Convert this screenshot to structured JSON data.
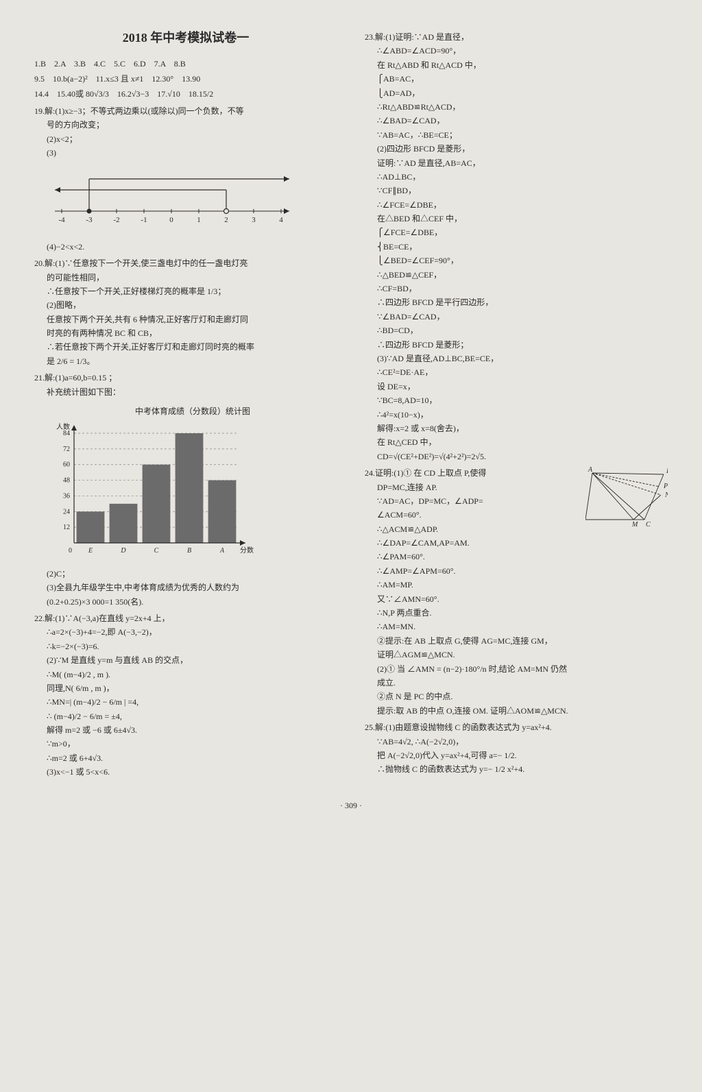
{
  "title": "2018 年中考模拟试卷一",
  "page_number": "· 309 ·",
  "mc_answers": {
    "row1": "1.B　2.A　3.B　4.C　5.C　6.D　7.A　8.B",
    "row2_a": "9.5　10.b(a−2)²　11.x≤3 且 x≠1　12.30°　13.90",
    "row2_b": "14.4　15.40或 80√3/3　16.2√3−3　17.√10　18.15/2"
  },
  "q19": {
    "head": "19.解:(1)x≥−3；不等式两边乘以(或除以)同一个负数，不等",
    "head2": "号的方向改变；",
    "p2": "(2)x<2；",
    "p3": "(3)",
    "numline": {
      "min": -4,
      "max": 4,
      "ticks": [
        -4,
        -3,
        -2,
        -1,
        0,
        1,
        2,
        3,
        4
      ],
      "open_at": 2,
      "closed_at": -3,
      "shade_from": -2,
      "shade_to": 2,
      "bracket1_from": -3,
      "bracket1_to": 4,
      "bracket2_from": -4,
      "bracket2_to": 2,
      "axis_color": "#2a2a2a",
      "tick_fontsize": 11
    },
    "p4": "(4)−2<x<2."
  },
  "q20": {
    "head": "20.解:(1)∵任意按下一个开关,使三盏电灯中的任一盏电灯亮",
    "l1": "的可能性相同，",
    "l2": "∴任意按下一个开关,正好楼梯灯亮的概率是 1/3；",
    "l3": "(2)图略，",
    "l4": "任意按下两个开关,共有 6 种情况,正好客厅灯和走廊灯同",
    "l5": "时亮的有两种情况 BC 和 CB，",
    "l6": "∴若任意按下两个开关,正好客厅灯和走廊灯同时亮的概率",
    "l7": "是 2/6 = 1/3。"
  },
  "q21": {
    "head": "21.解:(1)a=60,b=0.15 ；",
    "l1": "补充统计图如下图：",
    "chart": {
      "title": "中考体育成绩（分数段）统计图",
      "ylabel": "人数",
      "xlabel": "分数段",
      "categories": [
        "E",
        "D",
        "C",
        "B",
        "A"
      ],
      "values": [
        24,
        30,
        60,
        84,
        48
      ],
      "ylim": [
        0,
        84
      ],
      "ytick_step": 12,
      "yticks": [
        12,
        24,
        36,
        48,
        60,
        72,
        84
      ],
      "bar_color": "#6b6b6b",
      "grid_color": "#888888",
      "bar_width": 0.85,
      "background": "#e8e6e0",
      "axis_color": "#2a2a2a",
      "fontsize": 10
    },
    "l2": "(2)C；",
    "l3": "(3)全县九年级学生中,中考体育成绩为优秀的人数约为",
    "l4": "(0.2+0.25)×3 000=1 350(名)."
  },
  "q22": {
    "head": "22.解:(1)∵A(−3,a)在直线 y=2x+4 上，",
    "l1": "∴a=2×(−3)+4=−2,即 A(−3,−2)，",
    "l2": "∴k=−2×(−3)=6.",
    "l3": "(2)∵M 是直线 y=m 与直线 AB 的交点，",
    "l4": "∴M( (m−4)/2 , m ).",
    "l5": "同理,N( 6/m , m )，",
    "l6": "∴MN=| (m−4)/2 − 6/m | =4,",
    "l7": "∴ (m−4)/2 − 6/m = ±4,",
    "l8": "解得 m=2 或 −6 或 6±4√3.",
    "l9": "∵m>0，",
    "l10": "∴m=2 或 6+4√3.",
    "l11": "(3)x<−1 或 5<x<6."
  },
  "q23": {
    "head": "23.解:(1)证明:∵AD 是直径，",
    "lines": [
      "∴∠ABD=∠ACD=90°，",
      "在 Rt△ABD 和 Rt△ACD 中，",
      "⎧AB=AC，",
      "⎩AD=AD，",
      "∴Rt△ABD≌Rt△ACD，",
      "∴∠BAD=∠CAD，",
      "∵AB=AC，∴BE=CE；",
      "(2)四边形 BFCD 是菱形，",
      "证明:∵AD 是直径,AB=AC，",
      "∴AD⊥BC，",
      "∵CF∥BD，",
      "∴∠FCE=∠DBE，",
      "在△BED 和△CEF 中，",
      "⎧∠FCE=∠DBE，",
      "⎨BE=CE，",
      "⎩∠BED=∠CEF=90°，",
      "∴△BED≌△CEF，",
      "∴CF=BD，",
      "∴四边形 BFCD 是平行四边形，",
      "∵∠BAD=∠CAD，",
      "∴BD=CD，",
      "∴四边形 BFCD 是菱形；",
      "(3)∵AD 是直径,AD⊥BC,BE=CE，",
      "∴CE²=DE·AE，",
      "设 DE=x，",
      "∵BC=8,AD=10，",
      "∴4²=x(10−x)，",
      "解得:x=2 或 x=8(舍去)，",
      "在 Rt△CED 中，",
      "CD=√(CE²+DE²)=√(4²+2²)=2√5."
    ]
  },
  "q24": {
    "head": "24.证明:(1)① 在 CD 上取点 P,使得",
    "geom": {
      "points": {
        "A": [
          10,
          10
        ],
        "B": [
          0,
          78
        ],
        "M": [
          70,
          78
        ],
        "C": [
          86,
          78
        ],
        "D": [
          114,
          12
        ],
        "P": [
          108,
          30
        ],
        "N": [
          110,
          42
        ]
      },
      "stroke": "#2a2a2a",
      "fontsize": 10
    },
    "lines": [
      "DP=MC,连接 AP.",
      "∵AD=AC，DP=MC，∠ADP=",
      "∠ACM=60°.",
      "∴△ACM≌△ADP.",
      "∴∠DAP=∠CAM,AP=AM.",
      "∴∠PAM=60°.",
      "∴∠AMP=∠APM=60°.",
      "∴AM=MP.",
      "又∵∠AMN=60°.",
      "∴N,P 两点重合.",
      "∴AM=MN.",
      "②提示:在 AB 上取点 G,使得 AG=MC,连接 GM，",
      "证明△AGM≌△MCN.",
      "(2)① 当 ∠AMN = (n−2)·180°/n 时,结论 AM=MN 仍然",
      "成立.",
      "②点 N 是 PC 的中点.",
      "提示:取 AB 的中点 O,连接 OM. 证明△AOM≌△MCN."
    ]
  },
  "q25": {
    "head": "25.解:(1)由题意设抛物线 C 的函数表达式为 y=ax²+4.",
    "lines": [
      "∵AB=4√2, ∴A(−2√2,0)，",
      "把 A(−2√2,0)代入 y=ax²+4,可得 a=− 1/2.",
      "∴抛物线 C 的函数表达式为 y=− 1/2 x²+4."
    ]
  }
}
